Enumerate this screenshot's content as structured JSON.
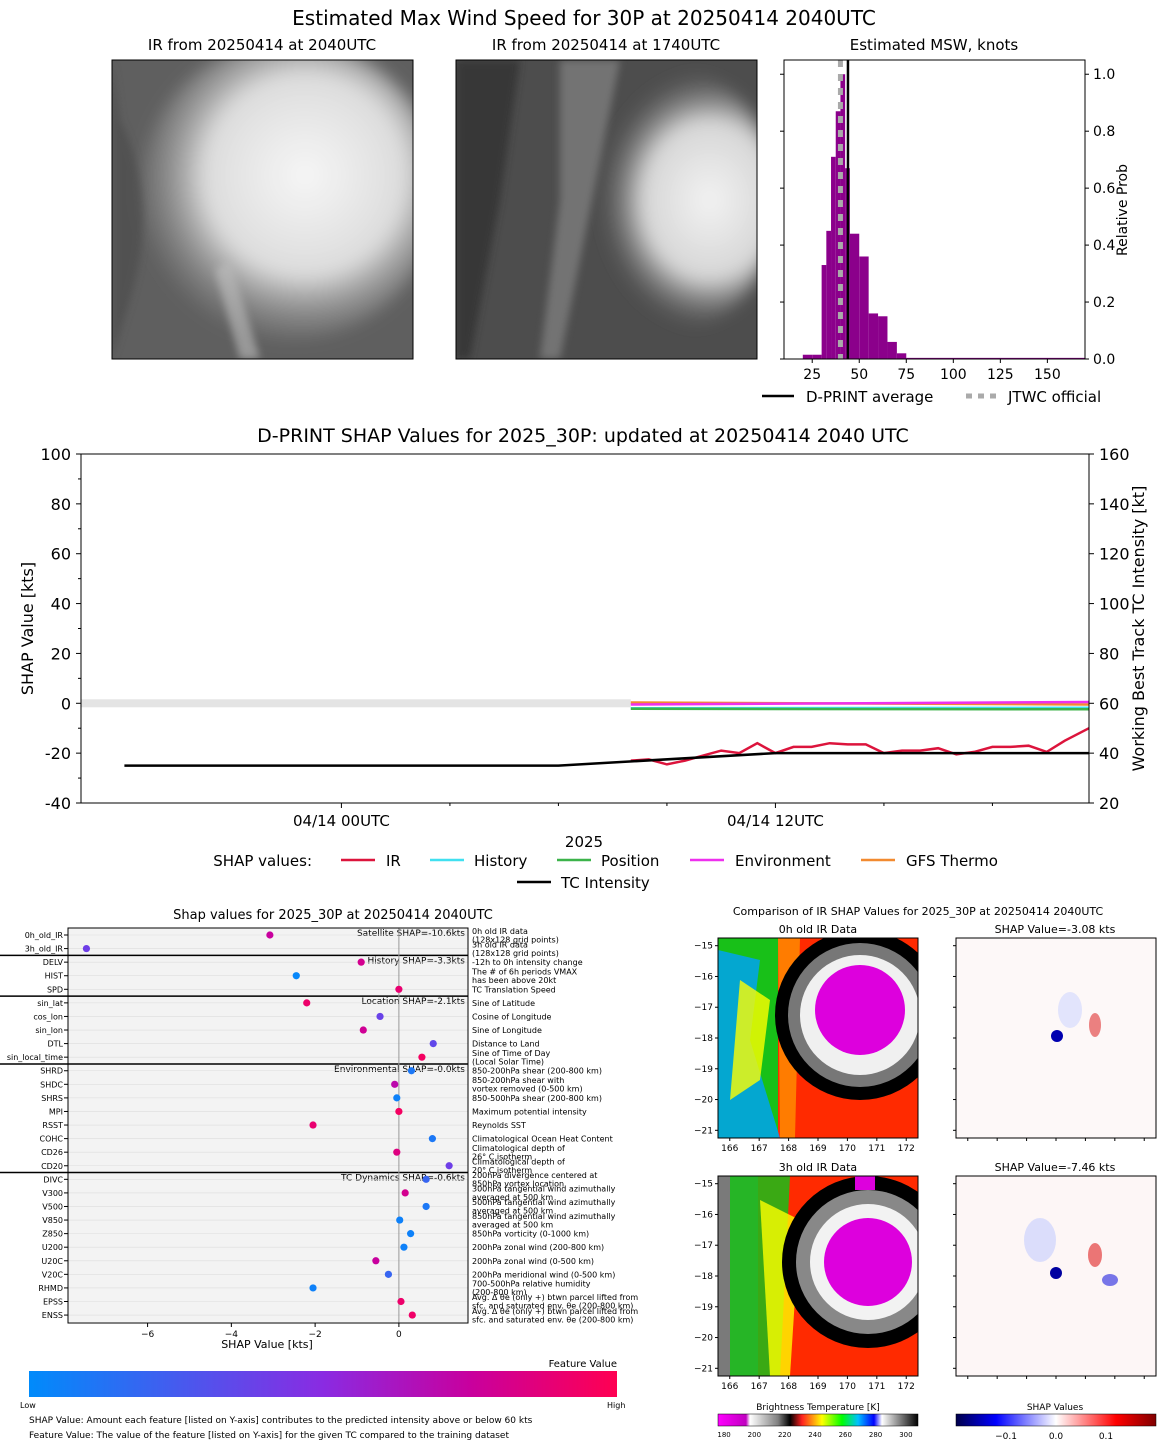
{
  "page_title": "Estimated Max Wind Speed for 30P at 20250414 2040UTC",
  "panel_ir_now": {
    "title": "IR from 20250414 at 2040UTC"
  },
  "panel_ir_prev": {
    "title": "IR from 20250414 at 1740UTC"
  },
  "msw_chart": {
    "title": "Estimated MSW, knots",
    "ylabel": "Relative Prob"
  },
  "msw_legend": {
    "dprint": "D-PRINT average",
    "jtwc": "JTWC official"
  },
  "shap_ts": {
    "title": "D-PRINT SHAP Values for 2025_30P: updated at 20250414 2040 UTC",
    "xlabel": "2025"
  },
  "shap_legend": {
    "prefix": "SHAP values:",
    "ir": "IR",
    "history": "History",
    "position": "Position",
    "environment": "Environment",
    "gfs": "GFS Thermo",
    "tc": "TC Intensity"
  },
  "beeswarm": {
    "title": "Shap values for 2025_30P at 20250414 2040UTC",
    "xlabel": "SHAP Value [kts]",
    "colorbar_title": "Feature Value",
    "colorbar_low": "Low",
    "colorbar_high": "High",
    "footnote1": "SHAP Value: Amount each feature [listed on Y-axis] contributes to the predicted intensity above or below 60 kts",
    "footnote2": "Feature Value: The value of the feature [listed on Y-axis] for the given TC compared to the training dataset"
  },
  "ir_compare": {
    "title": "Comparison of IR SHAP Values for 2025_30P at 20250414 2040UTC",
    "p0_title": "0h old IR Data",
    "p1_title": "SHAP Value=-3.08 kts",
    "p2_title": "3h old IR Data",
    "p3_title": "SHAP Value=-7.46 kts",
    "bt_label": "Brightness Temperature [K]",
    "sv_label": "SHAP Values"
  },
  "colors": {
    "purple": "#8b008b",
    "ir": "#dc143c",
    "history": "#40e0f0",
    "position": "#3cb34a",
    "environment": "#ee30ee",
    "gfs": "#f28a30",
    "tc": "#000000"
  },
  "chart_data": [
    {
      "type": "bar",
      "title": "Estimated MSW, knots",
      "xlabel": "",
      "ylabel": "Relative Prob",
      "x_ticks": [
        25,
        50,
        75,
        100,
        125,
        150
      ],
      "y_ticks": [
        0.0,
        0.2,
        0.4,
        0.6,
        0.8,
        1.0
      ],
      "xlim": [
        10,
        170
      ],
      "ylim": [
        0,
        1.05
      ],
      "bins": [
        {
          "x0": 20,
          "x1": 25,
          "v": 0.015
        },
        {
          "x0": 25,
          "x1": 30,
          "v": 0.015
        },
        {
          "x0": 30,
          "x1": 32.5,
          "v": 0.33
        },
        {
          "x0": 32.5,
          "x1": 35,
          "v": 0.45
        },
        {
          "x0": 35,
          "x1": 37.5,
          "v": 0.71
        },
        {
          "x0": 37.5,
          "x1": 40,
          "v": 0.87
        },
        {
          "x0": 40,
          "x1": 42.5,
          "v": 1.0
        },
        {
          "x0": 42.5,
          "x1": 45,
          "v": 0.67
        },
        {
          "x0": 45,
          "x1": 50,
          "v": 0.44
        },
        {
          "x0": 50,
          "x1": 55,
          "v": 0.36
        },
        {
          "x0": 55,
          "x1": 60,
          "v": 0.16
        },
        {
          "x0": 60,
          "x1": 65,
          "v": 0.15
        },
        {
          "x0": 65,
          "x1": 70,
          "v": 0.06
        },
        {
          "x0": 70,
          "x1": 75,
          "v": 0.02
        },
        {
          "x0": 75,
          "x1": 170,
          "v": 0.004
        }
      ],
      "dprint_avg": 44,
      "jtwc_official": 40
    },
    {
      "type": "line",
      "title": "D-PRINT SHAP Values for 2025_30P: updated at 20250414 2040 UTC",
      "xlabel": "2025",
      "ylabel": "SHAP Value [kts]",
      "ylabel_right": "Working Best Track TC Intensity [kt]",
      "x_ticks": [
        "04/14 00UTC",
        "04/14 12UTC"
      ],
      "y_ticks": [
        -40,
        -20,
        0,
        20,
        40,
        60,
        80,
        100
      ],
      "y2_ticks": [
        20,
        40,
        60,
        80,
        100,
        120,
        140,
        160
      ],
      "xlim_hours": [
        -7.2,
        20.67
      ],
      "ylim": [
        -40,
        100
      ],
      "y2lim": [
        20,
        160
      ],
      "tc_intensity": {
        "hours": [
          -6,
          6,
          12,
          20.67
        ],
        "values": [
          35,
          35,
          40,
          40
        ]
      },
      "series": [
        {
          "name": "IR",
          "hours": [
            8,
            8.5,
            9,
            9.5,
            10,
            10.5,
            11,
            11.5,
            12,
            12.5,
            13,
            13.5,
            14,
            14.5,
            15,
            15.5,
            16,
            16.5,
            17,
            17.5,
            18,
            18.5,
            19,
            19.5,
            20,
            20.67
          ],
          "values": [
            -23,
            -22.5,
            -24.5,
            -23,
            -21,
            -19,
            -20,
            -16,
            -20,
            -17.5,
            -17.5,
            -16,
            -16.5,
            -16.5,
            -20,
            -19,
            -19,
            -18,
            -20.5,
            -19.5,
            -17.5,
            -17.5,
            -17,
            -19.5,
            -15,
            -10
          ]
        },
        {
          "name": "History",
          "hours": [
            8,
            20.67
          ],
          "values": [
            -2,
            -1.8
          ]
        },
        {
          "name": "Position",
          "hours": [
            8,
            20.67
          ],
          "values": [
            -2.2,
            -2.4
          ]
        },
        {
          "name": "Environment",
          "hours": [
            8,
            20.67
          ],
          "values": [
            -0.5,
            0.5
          ]
        },
        {
          "name": "GFS Thermo",
          "hours": [
            8,
            20.67
          ],
          "values": [
            0.3,
            -0.5
          ]
        }
      ]
    },
    {
      "type": "scatter",
      "title": "Shap values for 2025_30P at 20250414 2040UTC",
      "xlabel": "SHAP Value [kts]",
      "x_ticks": [
        -6,
        -4,
        -2,
        0
      ],
      "xlim": [
        -7.9,
        1.65
      ],
      "groups": [
        {
          "label": "Satellite SHAP=-10.6kts",
          "features": [
            {
              "name": "0h_old_IR",
              "desc": [
                "0h old IR data",
                "(128x128 grid points)"
              ],
              "shap": -3.08,
              "fv": 0.75
            },
            {
              "name": "3h_old_IR",
              "desc": [
                "3h old IR data",
                "(128x128 grid points)"
              ],
              "shap": -7.46,
              "fv": 0.4
            }
          ]
        },
        {
          "label": "History SHAP=-3.3kts",
          "features": [
            {
              "name": "DELV",
              "desc": [
                "-12h to 0h intensity change"
              ],
              "shap": -0.9,
              "fv": 0.8
            },
            {
              "name": "HIST",
              "desc": [
                "The # of 6h periods VMAX",
                "has been above 20kt"
              ],
              "shap": -2.45,
              "fv": 0.02
            },
            {
              "name": "SPD",
              "desc": [
                "TC Translation Speed"
              ],
              "shap": 0.0,
              "fv": 0.9
            }
          ]
        },
        {
          "label": "Location SHAP=-2.1kts",
          "features": [
            {
              "name": "sin_lat",
              "desc": [
                "Sine of Latitude"
              ],
              "shap": -2.2,
              "fv": 0.92
            },
            {
              "name": "cos_lon",
              "desc": [
                "Cosine of Longitude"
              ],
              "shap": -0.45,
              "fv": 0.38
            },
            {
              "name": "sin_lon",
              "desc": [
                "Sine of Longitude"
              ],
              "shap": -0.85,
              "fv": 0.78
            },
            {
              "name": "DTL",
              "desc": [
                "Distance to Land"
              ],
              "shap": 0.82,
              "fv": 0.35
            },
            {
              "name": "sin_local_time",
              "desc": [
                "Sine of Time of Day",
                "(Local Solar Time)"
              ],
              "shap": 0.55,
              "fv": 0.95
            }
          ]
        },
        {
          "label": "Environmental SHAP=-0.0kts",
          "features": [
            {
              "name": "SHRD",
              "desc": [
                "850-200hPa shear (200-800 km)"
              ],
              "shap": 0.3,
              "fv": 0.1
            },
            {
              "name": "SHDC",
              "desc": [
                "850-200hPa shear with",
                "vortex removed (0-500 km)"
              ],
              "shap": -0.1,
              "fv": 0.7
            },
            {
              "name": "SHRS",
              "desc": [
                "850-500hPa shear (200-800 km)"
              ],
              "shap": -0.05,
              "fv": 0.05
            },
            {
              "name": "MPI",
              "desc": [
                "Maximum potential intensity"
              ],
              "shap": 0.0,
              "fv": 0.95
            },
            {
              "name": "RSST",
              "desc": [
                "Reynolds SST"
              ],
              "shap": -2.05,
              "fv": 0.9
            },
            {
              "name": "COHC",
              "desc": [
                "Climatological Ocean Heat Content"
              ],
              "shap": 0.8,
              "fv": 0.1
            },
            {
              "name": "CD26",
              "desc": [
                "Climatological depth of",
                "26° C isotherm"
              ],
              "shap": -0.05,
              "fv": 0.85
            },
            {
              "name": "CD20",
              "desc": [
                "Climatological depth of",
                "20° C isotherm"
              ],
              "shap": 1.2,
              "fv": 0.4
            }
          ]
        },
        {
          "label": "TC Dynamics SHAP=-0.6kts",
          "features": [
            {
              "name": "DIVC",
              "desc": [
                "200hPa divergence centered at",
                "850hPa vortex location"
              ],
              "shap": 0.65,
              "fv": 0.2
            },
            {
              "name": "V300",
              "desc": [
                "300hPa tangential wind azimuthally",
                "averaged at 500 km"
              ],
              "shap": 0.15,
              "fv": 0.8
            },
            {
              "name": "V500",
              "desc": [
                "500hPa tangential wind azimuthally",
                "averaged at 500 km"
              ],
              "shap": 0.65,
              "fv": 0.1
            },
            {
              "name": "V850",
              "desc": [
                "850hPa tangential wind azimuthally",
                "averaged at 500 km"
              ],
              "shap": 0.02,
              "fv": 0.05
            },
            {
              "name": "Z850",
              "desc": [
                "850hPa vorticity (0-1000 km)"
              ],
              "shap": 0.28,
              "fv": 0.05
            },
            {
              "name": "U200",
              "desc": [
                "200hPa zonal wind (200-800 km)"
              ],
              "shap": 0.12,
              "fv": 0.05
            },
            {
              "name": "U20C",
              "desc": [
                "200hPa zonal wind (0-500 km)"
              ],
              "shap": -0.55,
              "fv": 0.75
            },
            {
              "name": "V20C",
              "desc": [
                "200hPa meridional wind (0-500 km)"
              ],
              "shap": -0.25,
              "fv": 0.2
            },
            {
              "name": "RHMD",
              "desc": [
                "700-500hPa relative humidity",
                "(200-800 km)"
              ],
              "shap": -2.05,
              "fv": 0.05
            },
            {
              "name": "EPSS",
              "desc": [
                "Avg. Δ θe (only +) btwn parcel lifted from",
                "sfc. and saturated env. θe (200-800 km)"
              ],
              "shap": 0.05,
              "fv": 0.92
            },
            {
              "name": "ENSS",
              "desc": [
                "Avg. Δ θe (only +) btwn parcel lifted from",
                "sfc. and saturated env. θe (200-800 km)"
              ],
              "shap": 0.32,
              "fv": 0.93
            }
          ]
        }
      ]
    },
    {
      "type": "heatmap",
      "title": "Comparison of IR SHAP Values for 2025_30P at 20250414 2040UTC",
      "x_ticks": [
        166,
        167,
        168,
        169,
        170,
        171,
        172
      ],
      "y_ticks": [
        -15,
        -16,
        -17,
        -18,
        -19,
        -20,
        -21
      ],
      "bt_colorbar_ticks": [
        180,
        200,
        220,
        240,
        260,
        280,
        300
      ],
      "shap_colorbar_ticks": [
        -0.1,
        0.0,
        0.1
      ]
    }
  ]
}
